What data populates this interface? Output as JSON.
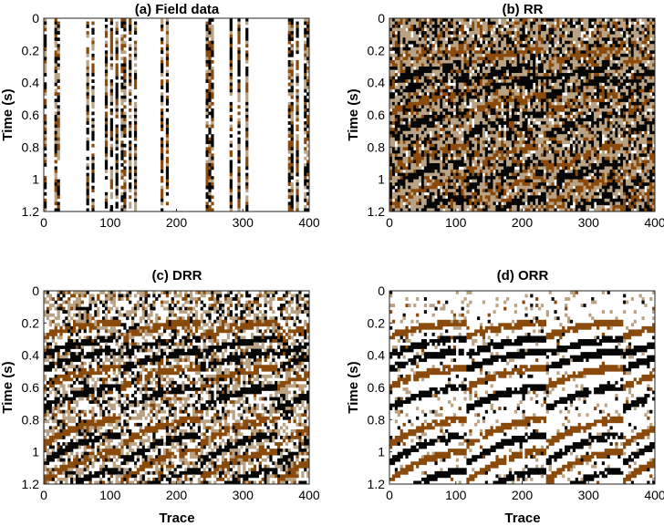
{
  "figure": {
    "colors": {
      "black": "#050505",
      "brown": "#8a4a0c",
      "tan": "#b9a384",
      "white": "#ffffff",
      "grid_bg": "#ffffff"
    }
  },
  "chart_data": [
    {
      "type": "heatmap",
      "title": "(a) Field data",
      "xlabel": "",
      "ylabel": "Time (s)",
      "xlim": [
        0,
        400
      ],
      "ylim": [
        0,
        1.2
      ],
      "x_ticks": [
        "0",
        "100",
        "200",
        "300",
        "400"
      ],
      "y_ticks": [
        "0",
        "0.2",
        "0.4",
        "0.6",
        "0.8",
        "1",
        "1.2"
      ],
      "description": "Decimated seismic field data: only ~30% of traces present, random colored samples, remaining columns blank",
      "live_trace_ranges": [
        [
          0,
          5
        ],
        [
          16,
          24
        ],
        [
          64,
          68
        ],
        [
          72,
          78
        ],
        [
          92,
          96
        ],
        [
          100,
          104
        ],
        [
          108,
          112
        ],
        [
          116,
          124
        ],
        [
          128,
          132
        ],
        [
          136,
          140
        ],
        [
          176,
          182
        ],
        [
          184,
          188
        ],
        [
          244,
          256
        ],
        [
          280,
          286
        ],
        [
          294,
          298
        ],
        [
          304,
          310
        ],
        [
          368,
          378
        ],
        [
          380,
          384
        ],
        [
          392,
          400
        ]
      ],
      "events": []
    },
    {
      "type": "heatmap",
      "title": "(b) RR",
      "xlabel": "",
      "ylabel": "Time (s)",
      "xlim": [
        0,
        400
      ],
      "ylim": [
        0,
        1.2
      ],
      "x_ticks": [
        "0",
        "100",
        "200",
        "300",
        "400"
      ],
      "y_ticks": [
        "0",
        "0.2",
        "0.4",
        "0.6",
        "0.8",
        "1",
        "1.2"
      ],
      "description": "Rank-reduction reconstruction with strong residual noise; four shot gathers with curved reflection events",
      "noise": 0.85,
      "live_trace_ranges": [
        [
          0,
          400
        ]
      ],
      "events": [
        {
          "t0": 0.2,
          "color": "brown"
        },
        {
          "t0": 0.3,
          "color": "black"
        },
        {
          "t0": 0.38,
          "color": "black"
        },
        {
          "t0": 0.48,
          "color": "brown"
        },
        {
          "t0": 0.6,
          "color": "black"
        },
        {
          "t0": 0.8,
          "color": "brown"
        },
        {
          "t0": 0.9,
          "color": "black"
        },
        {
          "t0": 1.0,
          "color": "brown"
        },
        {
          "t0": 1.12,
          "color": "black"
        }
      ]
    },
    {
      "type": "heatmap",
      "title": "(c) DRR",
      "xlabel": "Trace",
      "ylabel": "Time (s)",
      "xlim": [
        0,
        400
      ],
      "ylim": [
        0,
        1.2
      ],
      "x_ticks": [
        "0",
        "100",
        "200",
        "300",
        "400"
      ],
      "y_ticks": [
        "0",
        "0.2",
        "0.4",
        "0.6",
        "0.8",
        "1",
        "1.2"
      ],
      "description": "Damped rank-reduction reconstruction; moderate residual noise",
      "noise": 0.45,
      "live_trace_ranges": [
        [
          0,
          400
        ]
      ],
      "events": [
        {
          "t0": 0.2,
          "color": "brown"
        },
        {
          "t0": 0.3,
          "color": "black"
        },
        {
          "t0": 0.38,
          "color": "black"
        },
        {
          "t0": 0.48,
          "color": "brown"
        },
        {
          "t0": 0.6,
          "color": "black"
        },
        {
          "t0": 0.8,
          "color": "brown"
        },
        {
          "t0": 0.9,
          "color": "black"
        },
        {
          "t0": 1.0,
          "color": "brown"
        },
        {
          "t0": 1.12,
          "color": "black"
        }
      ]
    },
    {
      "type": "heatmap",
      "title": "(d) ORR",
      "xlabel": "Trace",
      "ylabel": "Time (s)",
      "xlim": [
        0,
        400
      ],
      "ylim": [
        0,
        1.2
      ],
      "x_ticks": [
        "0",
        "100",
        "200",
        "300",
        "400"
      ],
      "y_ticks": [
        "0",
        "0.2",
        "0.4",
        "0.6",
        "0.8",
        "1",
        "1.2"
      ],
      "description": "Optimally-damped rank-reduction reconstruction; cleanest events",
      "noise": 0.22,
      "live_trace_ranges": [
        [
          0,
          400
        ]
      ],
      "events": [
        {
          "t0": 0.2,
          "color": "brown"
        },
        {
          "t0": 0.3,
          "color": "black"
        },
        {
          "t0": 0.38,
          "color": "black"
        },
        {
          "t0": 0.48,
          "color": "brown"
        },
        {
          "t0": 0.6,
          "color": "black"
        },
        {
          "t0": 0.8,
          "color": "brown"
        },
        {
          "t0": 0.9,
          "color": "black"
        },
        {
          "t0": 1.0,
          "color": "brown"
        },
        {
          "t0": 1.12,
          "color": "black"
        }
      ]
    }
  ]
}
